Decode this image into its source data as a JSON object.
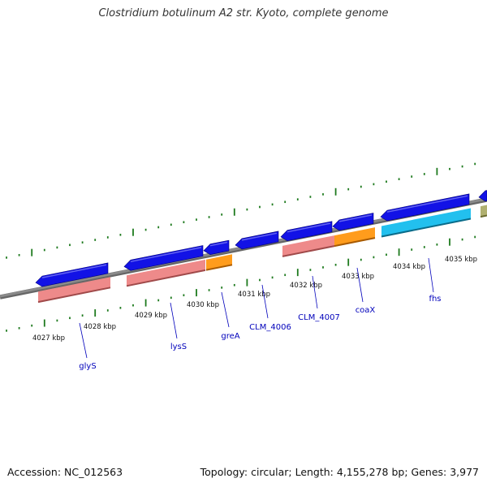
{
  "title": "Clostridium botulinum A2 str. Kyoto, complete genome",
  "accession": "Accession: NC_012563",
  "summary": "Topology: circular; Length: 4,155,278 bp; Genes: 3,977",
  "colors": {
    "backbone": "#8a8a8a",
    "tick": "#1e7a1e",
    "cds": "#1212e6",
    "rrna": "#ee8a8a",
    "trna": "#ff9c1c",
    "misc": "#22c0ee",
    "other": "#b0b070",
    "label": "#0000bb"
  },
  "scale_labels": [
    "4027 kbp",
    "4028 kbp",
    "4029 kbp",
    "4030 kbp",
    "4031 kbp",
    "4032 kbp",
    "4033 kbp",
    "4034 kbp",
    "4035 kbp"
  ],
  "gene_labels": [
    "glyS",
    "lysS",
    "greA",
    "CLM_4006",
    "CLM_4007",
    "coaX",
    "fhs"
  ]
}
